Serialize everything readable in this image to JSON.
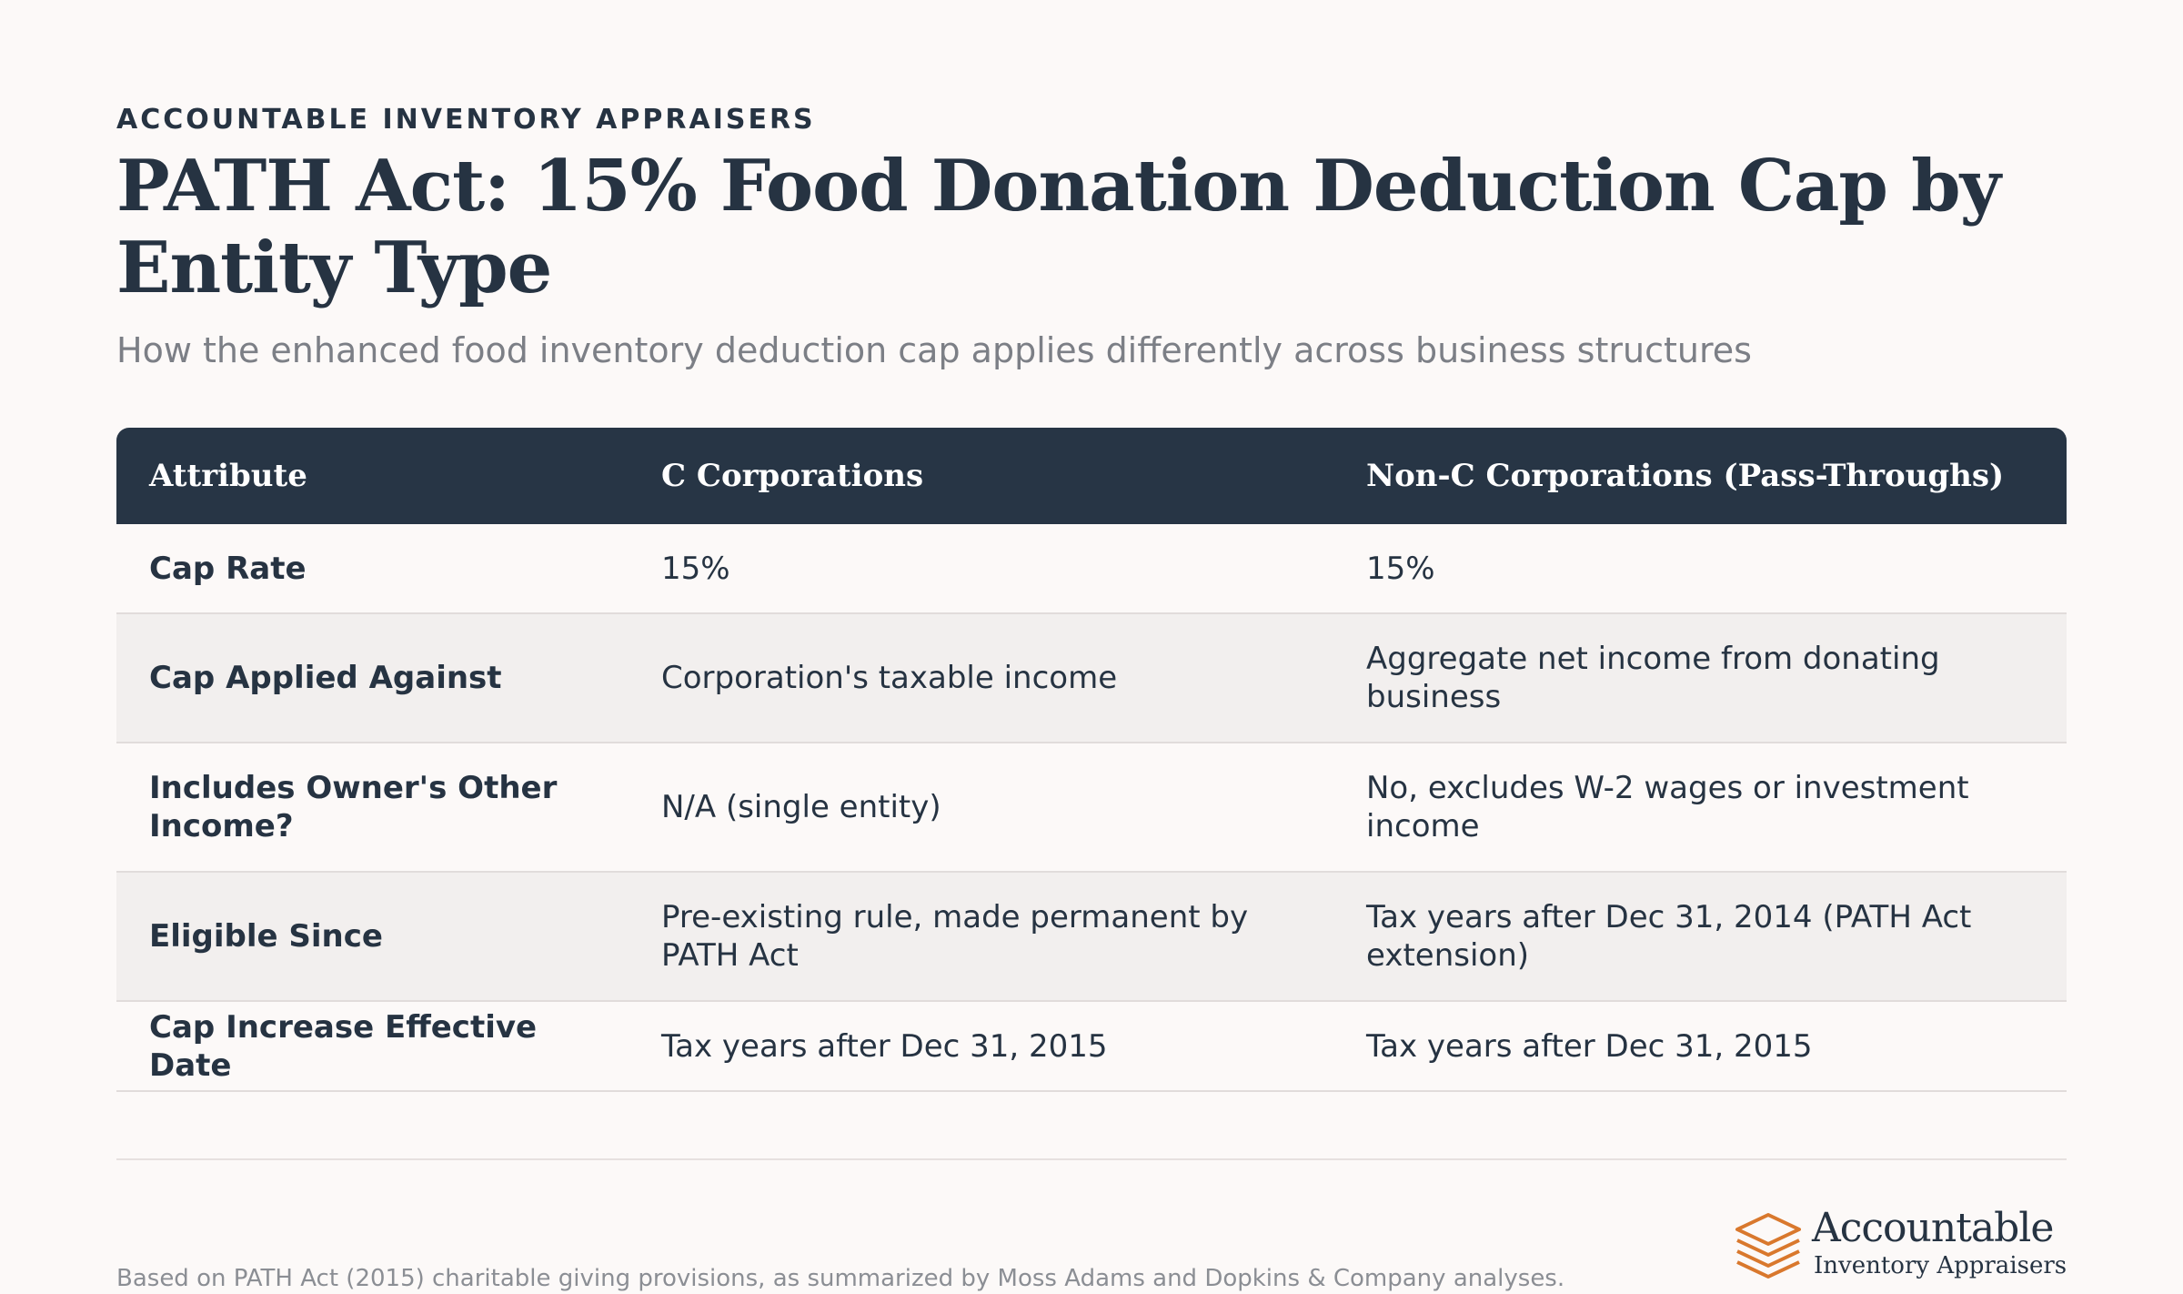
{
  "header": {
    "eyebrow": "ACCOUNTABLE INVENTORY APPRAISERS",
    "title": "PATH Act: 15% Food Donation Deduction Cap by Entity Type",
    "subtitle": "How the enhanced food inventory deduction cap applies differently across business structures"
  },
  "table": {
    "columns": [
      "Attribute",
      "C Corporations",
      "Non-C Corporations (Pass-Throughs)"
    ],
    "rows": [
      [
        "Cap Rate",
        "15%",
        "15%"
      ],
      [
        "Cap Applied Against",
        "Corporation's taxable income",
        "Aggregate net income from donating business"
      ],
      [
        "Includes Owner's Other Income?",
        "N/A (single entity)",
        "No, excludes W-2 wages or investment income"
      ],
      [
        "Eligible Since",
        "Pre-existing rule, made permanent by PATH Act",
        "Tax years after Dec 31, 2014 (PATH Act extension)"
      ],
      [
        "Cap Increase Effective Date",
        "Tax years after Dec 31, 2015",
        "Tax years after Dec 31, 2015"
      ]
    ]
  },
  "footer": {
    "note": "Based on PATH Act (2015) charitable giving provisions, as summarized by Moss Adams and Dopkins & Company analyses."
  },
  "logo": {
    "icon": "stacked-layers-icon",
    "name": "Accountable",
    "tagline": "Inventory Appraisers",
    "color": "#d9782d"
  },
  "colors": {
    "background": "#fcf9f8",
    "header_bg": "#273545",
    "text": "#263342",
    "muted": "#7c7f86",
    "row_alt": "#f2efee"
  }
}
